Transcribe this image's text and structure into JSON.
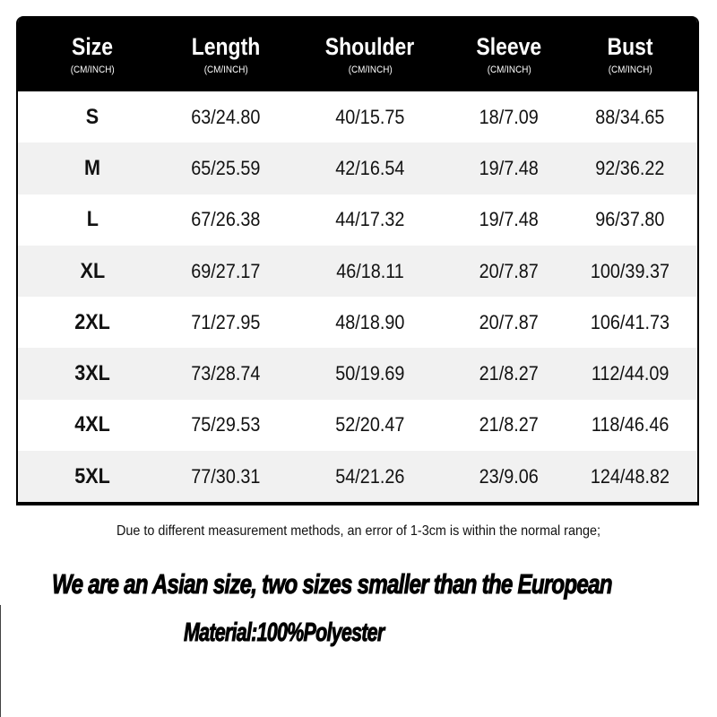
{
  "table": {
    "columns": [
      {
        "name": "Size",
        "unit": "(CM/INCH)"
      },
      {
        "name": "Length",
        "unit": "(CM/INCH)"
      },
      {
        "name": "Shoulder",
        "unit": "(CM/INCH)"
      },
      {
        "name": "Sleeve",
        "unit": "(CM/INCH)"
      },
      {
        "name": "Bust",
        "unit": "(CM/INCH)"
      }
    ],
    "rows": [
      [
        "S",
        "63/24.80",
        "40/15.75",
        "18/7.09",
        "88/34.65"
      ],
      [
        "M",
        "65/25.59",
        "42/16.54",
        "19/7.48",
        "92/36.22"
      ],
      [
        "L",
        "67/26.38",
        "44/17.32",
        "19/7.48",
        "96/37.80"
      ],
      [
        "XL",
        "69/27.17",
        "46/18.11",
        "20/7.87",
        "100/39.37"
      ],
      [
        "2XL",
        "71/27.95",
        "48/18.90",
        "20/7.87",
        "106/41.73"
      ],
      [
        "3XL",
        "73/28.74",
        "50/19.69",
        "21/8.27",
        "112/44.09"
      ],
      [
        "4XL",
        "75/29.53",
        "52/20.47",
        "21/8.27",
        "118/46.46"
      ],
      [
        "5XL",
        "77/30.31",
        "54/21.26",
        "23/9.06",
        "124/48.82"
      ]
    ]
  },
  "note": "Due to different measurement methods, an error of 1-3cm is within the normal range;",
  "asian_notice": "We are an Asian size, two sizes smaller than the European",
  "material": "Material:100%Polyester"
}
